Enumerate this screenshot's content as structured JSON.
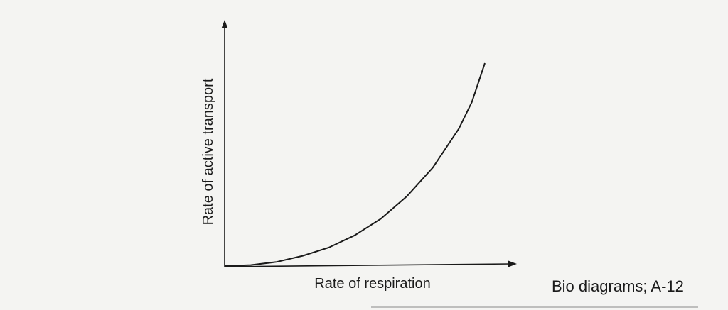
{
  "chart_data": {
    "type": "line",
    "title": "",
    "xlabel": "Rate of respiration",
    "ylabel": "Rate of active transport",
    "tick_labels_shown": false,
    "grid": false,
    "series": [
      {
        "values_note": "qualitative curve, no numeric ticks shown",
        "x": [
          0,
          0.1,
          0.2,
          0.3,
          0.4,
          0.5,
          0.6,
          0.7,
          0.8,
          0.9,
          0.95,
          1.0
        ],
        "y": [
          0,
          0.005,
          0.02,
          0.05,
          0.09,
          0.15,
          0.23,
          0.34,
          0.48,
          0.67,
          0.8,
          0.99
        ]
      }
    ],
    "xlim": [
      0,
      1.1
    ],
    "ylim": [
      0,
      1.2
    ]
  },
  "caption": "Bio diagrams; A-12"
}
